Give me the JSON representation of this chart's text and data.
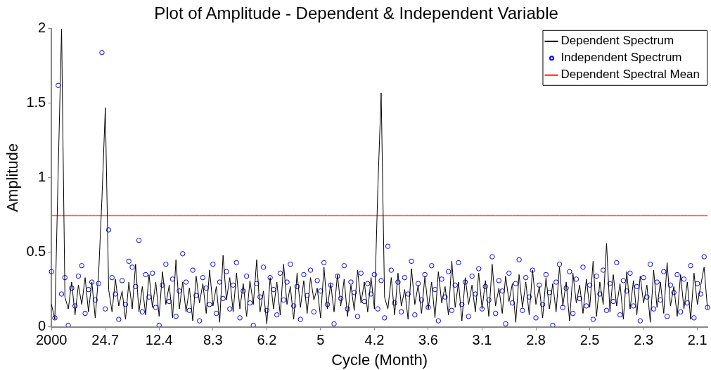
{
  "chart_data": {
    "type": "line",
    "title": "Plot of Amplitude - Dependent & Independent Variable",
    "xlabel": "Cycle (Month)",
    "ylabel": "Amplitude",
    "categories": [
      "2000",
      null,
      null,
      null,
      null,
      null,
      null,
      null,
      null,
      null,
      null,
      null,
      null,
      null,
      null,
      null,
      "24.7",
      null,
      null,
      null,
      null,
      null,
      null,
      null,
      null,
      null,
      null,
      null,
      null,
      null,
      null,
      null,
      "12.4",
      null,
      null,
      null,
      null,
      null,
      null,
      null,
      null,
      null,
      null,
      null,
      null,
      null,
      null,
      null,
      "8.3",
      null,
      null,
      null,
      null,
      null,
      null,
      null,
      null,
      null,
      null,
      null,
      null,
      null,
      null,
      null,
      "6.2",
      null,
      null,
      null,
      null,
      null,
      null,
      null,
      null,
      null,
      null,
      null,
      null,
      null,
      null,
      null,
      "5",
      null,
      null,
      null,
      null,
      null,
      null,
      null,
      null,
      null,
      null,
      null,
      null,
      null,
      null,
      null,
      "4.2",
      null,
      null,
      null,
      null,
      null,
      null,
      null,
      null,
      null,
      null,
      null,
      null,
      null,
      null,
      null,
      "3.6",
      null,
      null,
      null,
      null,
      null,
      null,
      null,
      null,
      null,
      null,
      null,
      null,
      null,
      null,
      null,
      "3.1",
      null,
      null,
      null,
      null,
      null,
      null,
      null,
      null,
      null,
      null,
      null,
      null,
      null,
      null,
      null,
      "2.8",
      null,
      null,
      null,
      null,
      null,
      null,
      null,
      null,
      null,
      null,
      null,
      null,
      null,
      null,
      null,
      "2.5",
      null,
      null,
      null,
      null,
      null,
      null,
      null,
      null,
      null,
      null,
      null,
      null,
      null,
      null,
      null,
      "2.3",
      null,
      null,
      null,
      null,
      null,
      null,
      null,
      null,
      null,
      null,
      null,
      null,
      null,
      null,
      null,
      "2.1",
      null,
      null,
      null
    ],
    "ylim": [
      0,
      2
    ],
    "yticks": [
      0,
      0.5,
      1,
      1.5,
      2
    ],
    "grid": false,
    "legend": "top right",
    "series": [
      {
        "name": "Dependent Spectrum",
        "color": "#000000",
        "marker": "none",
        "values": [
          0.15,
          0.05,
          1.05,
          2.0,
          0.2,
          0.12,
          0.3,
          0.08,
          0.28,
          0.15,
          0.33,
          0.1,
          0.3,
          0.06,
          0.35,
          0.86,
          1.47,
          0.25,
          0.1,
          0.32,
          0.14,
          0.24,
          0.05,
          0.3,
          0.12,
          0.42,
          0.1,
          0.27,
          0.08,
          0.35,
          0.13,
          0.3,
          0.07,
          0.37,
          0.15,
          0.28,
          0.06,
          0.45,
          0.12,
          0.3,
          0.1,
          0.26,
          0.04,
          0.34,
          0.16,
          0.29,
          0.09,
          0.38,
          0.14,
          0.27,
          0.03,
          0.48,
          0.18,
          0.33,
          0.1,
          0.36,
          0.12,
          0.29,
          0.07,
          0.31,
          0.15,
          0.45,
          0.1,
          0.24,
          0.02,
          0.33,
          0.12,
          0.3,
          0.08,
          0.42,
          0.15,
          0.27,
          0.05,
          0.36,
          0.13,
          0.31,
          0.09,
          0.33,
          0.18,
          0.26,
          0.06,
          0.4,
          0.12,
          0.29,
          0.1,
          0.35,
          0.14,
          0.32,
          0.07,
          0.28,
          0.11,
          0.38,
          0.16,
          0.3,
          0.1,
          0.33,
          0.12,
          0.92,
          1.57,
          0.2,
          0.12,
          0.33,
          0.08,
          0.36,
          0.14,
          0.25,
          0.05,
          0.39,
          0.15,
          0.28,
          0.09,
          0.34,
          0.12,
          0.3,
          0.06,
          0.37,
          0.16,
          0.27,
          0.08,
          0.44,
          0.13,
          0.3,
          0.04,
          0.33,
          0.15,
          0.28,
          0.1,
          0.36,
          0.12,
          0.31,
          0.07,
          0.42,
          0.14,
          0.26,
          0.09,
          0.34,
          0.17,
          0.29,
          0.03,
          0.35,
          0.13,
          0.3,
          0.08,
          0.38,
          0.15,
          0.27,
          0.06,
          0.33,
          0.12,
          0.29,
          0.1,
          0.4,
          0.14,
          0.3,
          0.04,
          0.36,
          0.16,
          0.28,
          0.09,
          0.32,
          0.13,
          0.44,
          0.07,
          0.3,
          0.15,
          0.56,
          0.1,
          0.35,
          0.14,
          0.29,
          0.05,
          0.37,
          0.12,
          0.31,
          0.08,
          0.34,
          0.16,
          0.28,
          0.03,
          0.38,
          0.13,
          0.3,
          0.09,
          0.43,
          0.14,
          0.27,
          0.07,
          0.35,
          0.12,
          0.3,
          0.05,
          0.36,
          0.15,
          0.28,
          0.4,
          0.12
        ]
      },
      {
        "name": "Independent Spectrum",
        "type": "scatter",
        "color": "#0000ff",
        "marker": "circle",
        "values": [
          0.37,
          0.06,
          1.62,
          0.22,
          0.33,
          0.01,
          0.26,
          0.14,
          0.34,
          0.41,
          0.09,
          0.25,
          0.3,
          0.18,
          0.29,
          1.84,
          0.12,
          0.65,
          0.33,
          0.22,
          0.05,
          0.31,
          0.15,
          0.44,
          0.4,
          0.27,
          0.58,
          0.1,
          0.35,
          0.2,
          0.36,
          0.13,
          0.01,
          0.28,
          0.42,
          0.17,
          0.32,
          0.07,
          0.24,
          0.49,
          0.3,
          0.11,
          0.38,
          0.21,
          0.04,
          0.33,
          0.26,
          0.15,
          0.42,
          0.09,
          0.3,
          0.19,
          0.37,
          0.12,
          0.28,
          0.43,
          0.06,
          0.24,
          0.34,
          0.16,
          0.01,
          0.29,
          0.2,
          0.4,
          0.11,
          0.33,
          0.25,
          0.08,
          0.36,
          0.18,
          0.3,
          0.42,
          0.14,
          0.27,
          0.05,
          0.35,
          0.21,
          0.38,
          0.1,
          0.31,
          0.24,
          0.43,
          0.15,
          0.28,
          0.02,
          0.34,
          0.19,
          0.41,
          0.12,
          0.3,
          0.23,
          0.07,
          0.36,
          0.17,
          0.29,
          0.22,
          0.35,
          0.12,
          0.31,
          0.06,
          0.54,
          0.38,
          0.16,
          0.3,
          0.1,
          0.33,
          0.22,
          0.44,
          0.08,
          0.29,
          0.18,
          0.35,
          0.13,
          0.41,
          0.25,
          0.04,
          0.32,
          0.2,
          0.37,
          0.11,
          0.28,
          0.43,
          0.15,
          0.3,
          0.07,
          0.34,
          0.22,
          0.39,
          0.12,
          0.27,
          0.18,
          0.47,
          0.09,
          0.31,
          0.24,
          0.02,
          0.36,
          0.16,
          0.29,
          0.45,
          0.11,
          0.33,
          0.2,
          0.38,
          0.06,
          0.28,
          0.15,
          0.35,
          0.23,
          0.01,
          0.3,
          0.42,
          0.13,
          0.26,
          0.37,
          0.09,
          0.32,
          0.19,
          0.4,
          0.14,
          0.28,
          0.05,
          0.34,
          0.22,
          0.38,
          0.11,
          0.29,
          0.17,
          0.43,
          0.08,
          0.31,
          0.24,
          0.36,
          0.14,
          0.27,
          0.04,
          0.33,
          0.2,
          0.42,
          0.12,
          0.3,
          0.18,
          0.37,
          0.07,
          0.28,
          0.23,
          0.35,
          0.1,
          0.32,
          0.16,
          0.41,
          0.06,
          0.29,
          0.22,
          0.47,
          0.13
        ]
      },
      {
        "name": "Dependent Spectral Mean",
        "color": "#e03030",
        "marker": "none",
        "values": [
          0.745,
          0.745,
          0.745,
          0.745,
          0.745,
          0.745,
          0.745,
          0.745,
          0.745,
          0.745,
          0.745,
          0.745,
          0.745,
          0.745,
          0.745,
          0.745,
          0.745,
          0.745,
          0.745,
          0.745,
          0.745,
          0.745,
          0.745,
          0.745,
          0.745,
          0.745,
          0.745,
          0.745,
          0.745,
          0.745,
          0.745,
          0.745,
          0.745,
          0.745,
          0.745,
          0.745,
          0.745,
          0.745,
          0.745,
          0.745,
          0.745,
          0.745,
          0.745,
          0.745,
          0.745,
          0.745,
          0.745,
          0.745,
          0.745,
          0.745,
          0.745,
          0.745,
          0.745,
          0.745,
          0.745,
          0.745,
          0.745,
          0.745,
          0.745,
          0.745,
          0.745,
          0.745,
          0.745,
          0.745,
          0.745,
          0.745,
          0.745,
          0.745,
          0.745,
          0.745,
          0.745,
          0.745,
          0.745,
          0.745,
          0.745,
          0.745,
          0.745,
          0.745,
          0.745,
          0.745,
          0.745,
          0.745,
          0.745,
          0.745,
          0.745,
          0.745,
          0.745,
          0.745,
          0.745,
          0.745,
          0.745,
          0.745,
          0.745,
          0.745,
          0.745,
          0.745,
          0.745,
          0.745,
          0.745,
          0.745,
          0.745,
          0.745,
          0.745,
          0.745,
          0.745,
          0.745,
          0.745,
          0.745,
          0.745,
          0.745,
          0.745,
          0.745,
          0.745,
          0.745,
          0.745,
          0.745,
          0.745,
          0.745,
          0.745,
          0.745,
          0.745,
          0.745,
          0.745,
          0.745,
          0.745,
          0.745,
          0.745,
          0.745,
          0.745,
          0.745,
          0.745,
          0.745,
          0.745,
          0.745,
          0.745,
          0.745,
          0.745,
          0.745,
          0.745,
          0.745,
          0.745,
          0.745,
          0.745,
          0.745,
          0.745,
          0.745,
          0.745,
          0.745,
          0.745,
          0.745,
          0.745,
          0.745,
          0.745,
          0.745,
          0.745,
          0.745,
          0.745,
          0.745,
          0.745,
          0.745,
          0.745,
          0.745,
          0.745,
          0.745,
          0.745,
          0.745,
          0.745,
          0.745,
          0.745,
          0.745,
          0.745,
          0.745,
          0.745,
          0.745,
          0.745,
          0.745,
          0.745,
          0.745,
          0.745,
          0.745,
          0.745,
          0.745,
          0.745,
          0.745,
          0.745,
          0.745,
          0.745,
          0.745,
          0.745,
          0.745,
          0.745,
          0.745,
          0.745,
          0.745,
          0.745,
          0.745
        ]
      }
    ]
  }
}
